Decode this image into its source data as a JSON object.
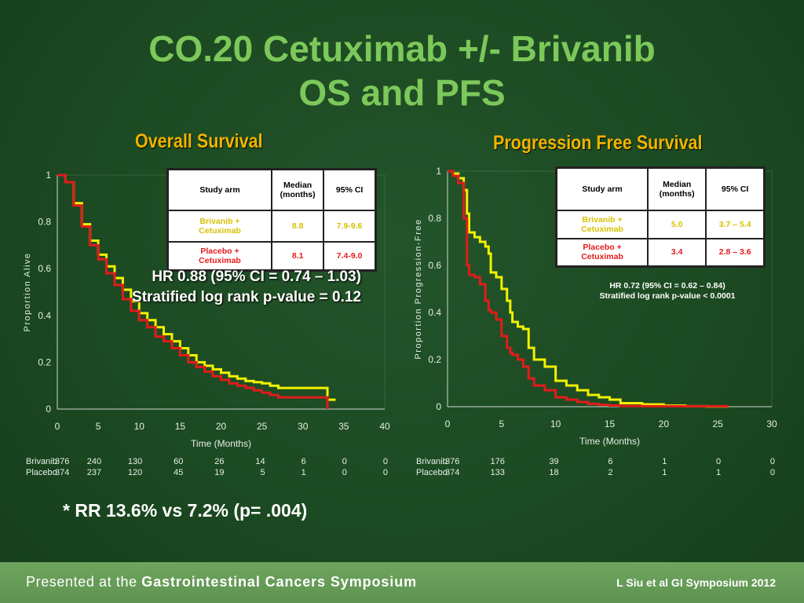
{
  "slide": {
    "title_line1": "CO.20 Cetuximab +/- Brivanib",
    "title_line2": "OS and PFS",
    "rr_note": "* RR 13.6% vs 7.2% (p= .004)",
    "footer_prefix": "Presented at the ",
    "footer_bold": "Gastrointestinal Cancers Symposium",
    "footer_right": "L Siu et al GI Symposium 2012"
  },
  "os": {
    "panel_title": "Overall Survival",
    "table": {
      "headers": [
        "Study arm",
        "Median\n(months)",
        "95% CI"
      ],
      "rows": [
        {
          "arm": "Brivanib +\nCetuximab",
          "median": "8.8",
          "ci": "7.9-9.6"
        },
        {
          "arm": "Placebo +\nCetuximab",
          "median": "8.1",
          "ci": "7.4-9.0"
        }
      ]
    },
    "hr_line": "HR 0.88 (95% CI = 0.74 – 1.03)",
    "p_line": "Stratified log rank  p-value = 0.12"
  },
  "pfs": {
    "panel_title": "Progression Free Survival",
    "table": {
      "headers": [
        "Study arm",
        "Median\n(months)",
        "95% CI"
      ],
      "rows": [
        {
          "arm": "Brivanib +\nCetuximab",
          "median": "5.0",
          "ci": "3.7 – 5.4"
        },
        {
          "arm": "Placebo +\nCetuximab",
          "median": "3.4",
          "ci": "2.8 – 3.6"
        }
      ]
    },
    "hr_line": "HR 0.72 (95% CI = 0.62 – 0.84)",
    "p_line": "Stratified log rank  p-value < 0.0001"
  },
  "colors": {
    "brivanib": "#f2f200",
    "placebo": "#e21b1b",
    "title_green": "#7cc85a",
    "panel_title_gold": "#f0b400",
    "axis_text": "#e6efe6"
  },
  "chart_data": [
    {
      "type": "line",
      "title": "Overall Survival",
      "xlabel": "Time (Months)",
      "ylabel": "Proportion Alive",
      "xlim": [
        0,
        40
      ],
      "ylim": [
        0,
        1
      ],
      "xticks": [
        "0",
        "5",
        "10",
        "15",
        "20",
        "25",
        "30",
        "35",
        "40"
      ],
      "yticks": [
        "0",
        "0.2",
        "0.4",
        "0.6",
        "0.8",
        "1"
      ],
      "series": [
        {
          "name": "Brivanib",
          "color": "#f2f200",
          "x": [
            0,
            1,
            2,
            3,
            4,
            5,
            6,
            7,
            8,
            9,
            10,
            11,
            12,
            13,
            14,
            15,
            16,
            17,
            18,
            19,
            20,
            21,
            22,
            23,
            24,
            25,
            26,
            27,
            28,
            29,
            30,
            31,
            32,
            32.9,
            33,
            34
          ],
          "y": [
            1.0,
            0.97,
            0.88,
            0.79,
            0.72,
            0.66,
            0.61,
            0.56,
            0.51,
            0.46,
            0.41,
            0.38,
            0.35,
            0.32,
            0.29,
            0.26,
            0.23,
            0.2,
            0.185,
            0.17,
            0.155,
            0.14,
            0.13,
            0.12,
            0.115,
            0.11,
            0.1,
            0.09,
            0.09,
            0.09,
            0.09,
            0.09,
            0.09,
            0.09,
            0.04,
            0.04
          ]
        },
        {
          "name": "Placebo",
          "color": "#e21b1b",
          "x": [
            0,
            1,
            2,
            3,
            4,
            5,
            6,
            7,
            8,
            9,
            10,
            11,
            12,
            13,
            14,
            15,
            16,
            17,
            18,
            19,
            20,
            21,
            22,
            23,
            24,
            25,
            26,
            27,
            28,
            29,
            30,
            31,
            32,
            32.9,
            33
          ],
          "y": [
            1.0,
            0.97,
            0.87,
            0.78,
            0.7,
            0.64,
            0.58,
            0.53,
            0.47,
            0.42,
            0.38,
            0.35,
            0.31,
            0.29,
            0.26,
            0.23,
            0.2,
            0.18,
            0.16,
            0.14,
            0.125,
            0.11,
            0.1,
            0.09,
            0.08,
            0.07,
            0.06,
            0.05,
            0.05,
            0.05,
            0.05,
            0.05,
            0.05,
            0.05,
            0.0
          ]
        }
      ],
      "at_risk": {
        "times": [
          "0",
          "5",
          "10",
          "15",
          "20",
          "25",
          "30",
          "35",
          "40"
        ],
        "rows": [
          {
            "label": "Brivanib",
            "values": [
              "376",
              "240",
              "130",
              "60",
              "26",
              "14",
              "6",
              "0",
              "0"
            ]
          },
          {
            "label": "Placebo",
            "values": [
              "374",
              "237",
              "120",
              "45",
              "19",
              "5",
              "1",
              "0",
              "0"
            ]
          }
        ]
      }
    },
    {
      "type": "line",
      "title": "Progression Free Survival",
      "xlabel": "Time (Months)",
      "ylabel": "Proportion Progression-Free",
      "xlim": [
        0,
        30
      ],
      "ylim": [
        0,
        1
      ],
      "xticks": [
        "0",
        "5",
        "10",
        "15",
        "20",
        "25",
        "30"
      ],
      "yticks": [
        "0",
        "0.2",
        "0.4",
        "0.6",
        "0.8",
        "1"
      ],
      "series": [
        {
          "name": "Brivanib",
          "color": "#f2f200",
          "x": [
            0,
            0.5,
            1,
            1.5,
            1.8,
            2.0,
            2.5,
            3,
            3.5,
            3.8,
            4.0,
            4.5,
            5.0,
            5.5,
            5.8,
            6.0,
            6.5,
            7,
            7.5,
            8,
            9,
            10,
            11,
            12,
            13,
            14,
            15,
            16,
            18,
            20,
            22,
            24,
            26
          ],
          "y": [
            1.0,
            0.99,
            0.97,
            0.92,
            0.82,
            0.74,
            0.72,
            0.7,
            0.68,
            0.65,
            0.57,
            0.55,
            0.5,
            0.45,
            0.4,
            0.36,
            0.34,
            0.33,
            0.25,
            0.2,
            0.17,
            0.11,
            0.09,
            0.07,
            0.05,
            0.04,
            0.03,
            0.015,
            0.01,
            0.005,
            0.002,
            0.001,
            0.001
          ]
        },
        {
          "name": "Placebo",
          "color": "#e21b1b",
          "x": [
            0,
            0.5,
            1,
            1.5,
            1.8,
            2.0,
            2.5,
            3,
            3.5,
            3.8,
            4.0,
            4.5,
            5.0,
            5.5,
            5.8,
            6.0,
            6.5,
            7,
            7.5,
            8,
            9,
            10,
            11,
            12,
            13,
            14,
            15,
            16,
            18,
            20,
            22,
            24,
            26
          ],
          "y": [
            1.0,
            0.98,
            0.95,
            0.8,
            0.6,
            0.56,
            0.55,
            0.52,
            0.45,
            0.41,
            0.4,
            0.37,
            0.3,
            0.25,
            0.23,
            0.22,
            0.2,
            0.17,
            0.12,
            0.09,
            0.07,
            0.04,
            0.03,
            0.02,
            0.012,
            0.008,
            0.005,
            0.003,
            0.002,
            0.002,
            0.002,
            0.002,
            0.002
          ]
        }
      ],
      "at_risk": {
        "times": [
          "0",
          "5",
          "10",
          "15",
          "20",
          "25",
          "30"
        ],
        "rows": [
          {
            "label": "Brivanib",
            "values": [
              "376",
              "176",
              "39",
              "6",
              "1",
              "0",
              "0"
            ]
          },
          {
            "label": "Placebo",
            "values": [
              "374",
              "133",
              "18",
              "2",
              "1",
              "1",
              "0"
            ]
          }
        ]
      }
    }
  ]
}
